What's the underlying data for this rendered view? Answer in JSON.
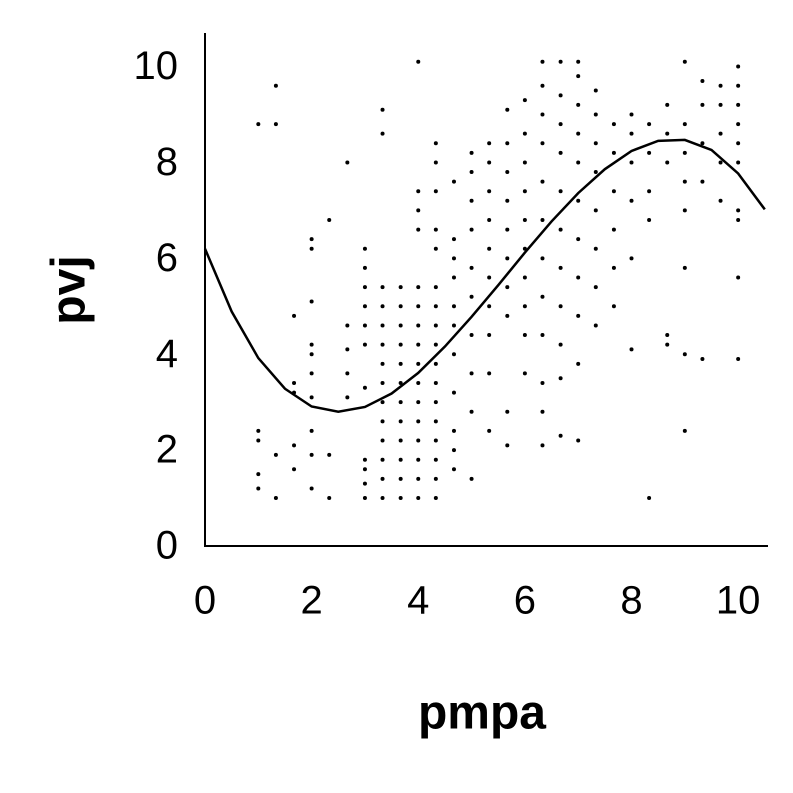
{
  "chart_data": {
    "type": "scatter",
    "x_label": "pmpa",
    "y_label": "pvj",
    "xlim": [
      0,
      10.56
    ],
    "ylim": [
      0,
      10.7
    ],
    "xticks": [
      0,
      2,
      4,
      6,
      8,
      10
    ],
    "yticks": [
      0,
      2,
      4,
      6,
      8,
      10
    ],
    "series": [
      {
        "type": "scatter",
        "color": "#000000",
        "x": [
          1,
          1,
          1,
          1,
          1,
          1.33,
          1.33,
          1.33,
          1.33,
          1.67,
          1.67,
          1.67,
          1.67,
          1.67,
          2,
          2,
          2,
          2,
          2,
          2,
          2,
          2,
          2,
          2,
          2.33,
          2.33,
          2.33,
          2.67,
          2.67,
          2.67,
          2.67,
          2.67,
          3,
          3,
          3,
          3,
          3,
          3,
          3,
          3,
          3,
          3,
          3,
          3.33,
          3.33,
          3.33,
          3.33,
          3.33,
          3.33,
          3.33,
          3.33,
          3.33,
          3.33,
          3.33,
          3.33,
          3.33,
          3.33,
          3.67,
          3.67,
          3.67,
          3.67,
          3.67,
          3.67,
          3.67,
          3.67,
          3.67,
          3.67,
          3.67,
          3.67,
          4,
          4,
          4,
          4,
          4,
          4,
          4,
          4,
          4,
          4,
          4,
          4,
          4,
          4,
          4,
          4,
          4.33,
          4.33,
          4.33,
          4.33,
          4.33,
          4.33,
          4.33,
          4.33,
          4.33,
          4.33,
          4.33,
          4.33,
          4.33,
          4.33,
          4.33,
          4.33,
          4.33,
          4.67,
          4.67,
          4.67,
          4.67,
          4.67,
          4.67,
          4.67,
          4.67,
          4.67,
          4.67,
          4.67,
          5,
          5,
          5,
          5,
          5,
          5,
          5,
          5,
          5,
          5,
          5.33,
          5.33,
          5.33,
          5.33,
          5.33,
          5.33,
          5.33,
          5.33,
          5.33,
          5.33,
          5.67,
          5.67,
          5.67,
          5.67,
          5.67,
          5.67,
          5.67,
          5.67,
          5.67,
          5.67,
          6,
          6,
          6,
          6,
          6,
          6,
          6,
          6,
          6,
          6,
          6.33,
          6.33,
          6.33,
          6.33,
          6.33,
          6.33,
          6.33,
          6.33,
          6.33,
          6.33,
          6.33,
          6.33,
          6.67,
          6.67,
          6.67,
          6.67,
          6.67,
          6.67,
          6.67,
          6.67,
          6.67,
          6.67,
          6.67,
          7,
          7,
          7,
          7,
          7,
          7,
          7,
          7,
          7,
          7,
          7,
          7.33,
          7.33,
          7.33,
          7.33,
          7.33,
          7.33,
          7.33,
          7.33,
          7.67,
          7.67,
          7.67,
          7.67,
          7.67,
          7.67,
          8,
          8,
          8,
          8,
          8,
          8,
          8.33,
          8.33,
          8.33,
          8.33,
          8.33,
          8.67,
          8.67,
          8.67,
          8.67,
          8.67,
          9,
          9,
          9,
          9,
          9,
          9,
          9,
          9,
          9.33,
          9.33,
          9.33,
          9.33,
          9.33,
          9.67,
          9.67,
          9.67,
          9.67,
          9.67,
          10,
          10,
          10,
          10,
          10,
          10,
          10,
          10,
          10,
          10
        ],
        "values": [
          1.2,
          1.5,
          2.2,
          2.4,
          8.8,
          1.0,
          1.9,
          8.8,
          9.6,
          1.6,
          2.1,
          3.2,
          3.4,
          4.8,
          1.2,
          1.9,
          2.4,
          3.1,
          3.6,
          4.0,
          4.2,
          5.1,
          6.2,
          6.4,
          1.0,
          1.9,
          6.8,
          3.1,
          3.6,
          4.1,
          4.6,
          8.0,
          1.0,
          1.3,
          1.6,
          1.8,
          3.3,
          4.2,
          4.6,
          5.0,
          5.4,
          5.8,
          6.2,
          1.0,
          1.4,
          1.8,
          2.2,
          2.6,
          3.0,
          3.4,
          3.8,
          4.2,
          4.6,
          5.0,
          5.4,
          8.6,
          9.1,
          1.0,
          1.4,
          1.8,
          2.2,
          2.6,
          3.0,
          3.4,
          3.8,
          4.2,
          4.6,
          5.0,
          5.4,
          1.0,
          1.4,
          1.8,
          2.2,
          2.6,
          3.0,
          3.4,
          3.8,
          4.2,
          4.6,
          5.0,
          5.4,
          6.6,
          7.0,
          7.4,
          10.1,
          1.0,
          1.4,
          1.8,
          2.2,
          2.6,
          3.0,
          3.4,
          3.8,
          4.2,
          4.6,
          5.0,
          5.4,
          6.2,
          6.6,
          7.4,
          8.0,
          8.4,
          1.6,
          2.0,
          2.4,
          3.2,
          4.0,
          4.6,
          5.0,
          5.6,
          6.0,
          6.4,
          7.6,
          1.4,
          2.8,
          3.6,
          4.4,
          5.2,
          5.8,
          6.6,
          7.2,
          7.8,
          8.2,
          2.4,
          3.6,
          4.4,
          5.0,
          5.6,
          6.2,
          6.8,
          7.4,
          8.0,
          8.4,
          2.1,
          2.8,
          4.8,
          5.4,
          6.0,
          6.6,
          7.2,
          7.8,
          8.4,
          9.1,
          3.6,
          4.4,
          5.0,
          5.6,
          6.2,
          6.8,
          7.4,
          8.0,
          8.6,
          9.3,
          2.1,
          2.8,
          3.4,
          4.4,
          5.2,
          6.0,
          6.8,
          7.6,
          8.4,
          9.0,
          9.6,
          10.1,
          2.3,
          3.5,
          4.2,
          5.0,
          5.8,
          6.6,
          7.4,
          8.2,
          8.8,
          9.4,
          10.1,
          2.2,
          3.8,
          4.8,
          5.6,
          6.4,
          7.2,
          8.0,
          8.6,
          9.2,
          9.8,
          10.1,
          4.6,
          5.4,
          6.2,
          7.0,
          7.8,
          8.4,
          9.0,
          9.5,
          5.0,
          5.8,
          6.6,
          7.4,
          8.2,
          8.8,
          4.1,
          6.0,
          7.2,
          8.0,
          8.6,
          9.0,
          1.0,
          6.8,
          7.4,
          8.2,
          8.8,
          4.2,
          4.4,
          8.0,
          8.6,
          9.2,
          2.4,
          4.0,
          5.8,
          7.0,
          7.6,
          8.2,
          8.8,
          10.1,
          3.9,
          7.6,
          8.4,
          9.2,
          9.7,
          7.2,
          8.0,
          8.6,
          9.2,
          9.6,
          3.9,
          5.6,
          6.8,
          7.0,
          8.0,
          8.4,
          8.8,
          9.2,
          9.6,
          10.0
        ]
      },
      {
        "type": "line",
        "color": "#000000",
        "x": [
          0,
          0.5,
          1,
          1.5,
          2,
          2.5,
          3,
          3.5,
          4,
          4.5,
          5,
          5.5,
          6,
          6.5,
          7,
          7.5,
          8,
          8.5,
          9,
          9.5,
          10,
          10.5
        ],
        "values": [
          6.2,
          4.89,
          3.92,
          3.28,
          2.91,
          2.8,
          2.9,
          3.18,
          3.61,
          4.16,
          4.78,
          5.44,
          6.12,
          6.77,
          7.36,
          7.86,
          8.24,
          8.45,
          8.47,
          8.26,
          7.77,
          7.02
        ]
      }
    ]
  }
}
